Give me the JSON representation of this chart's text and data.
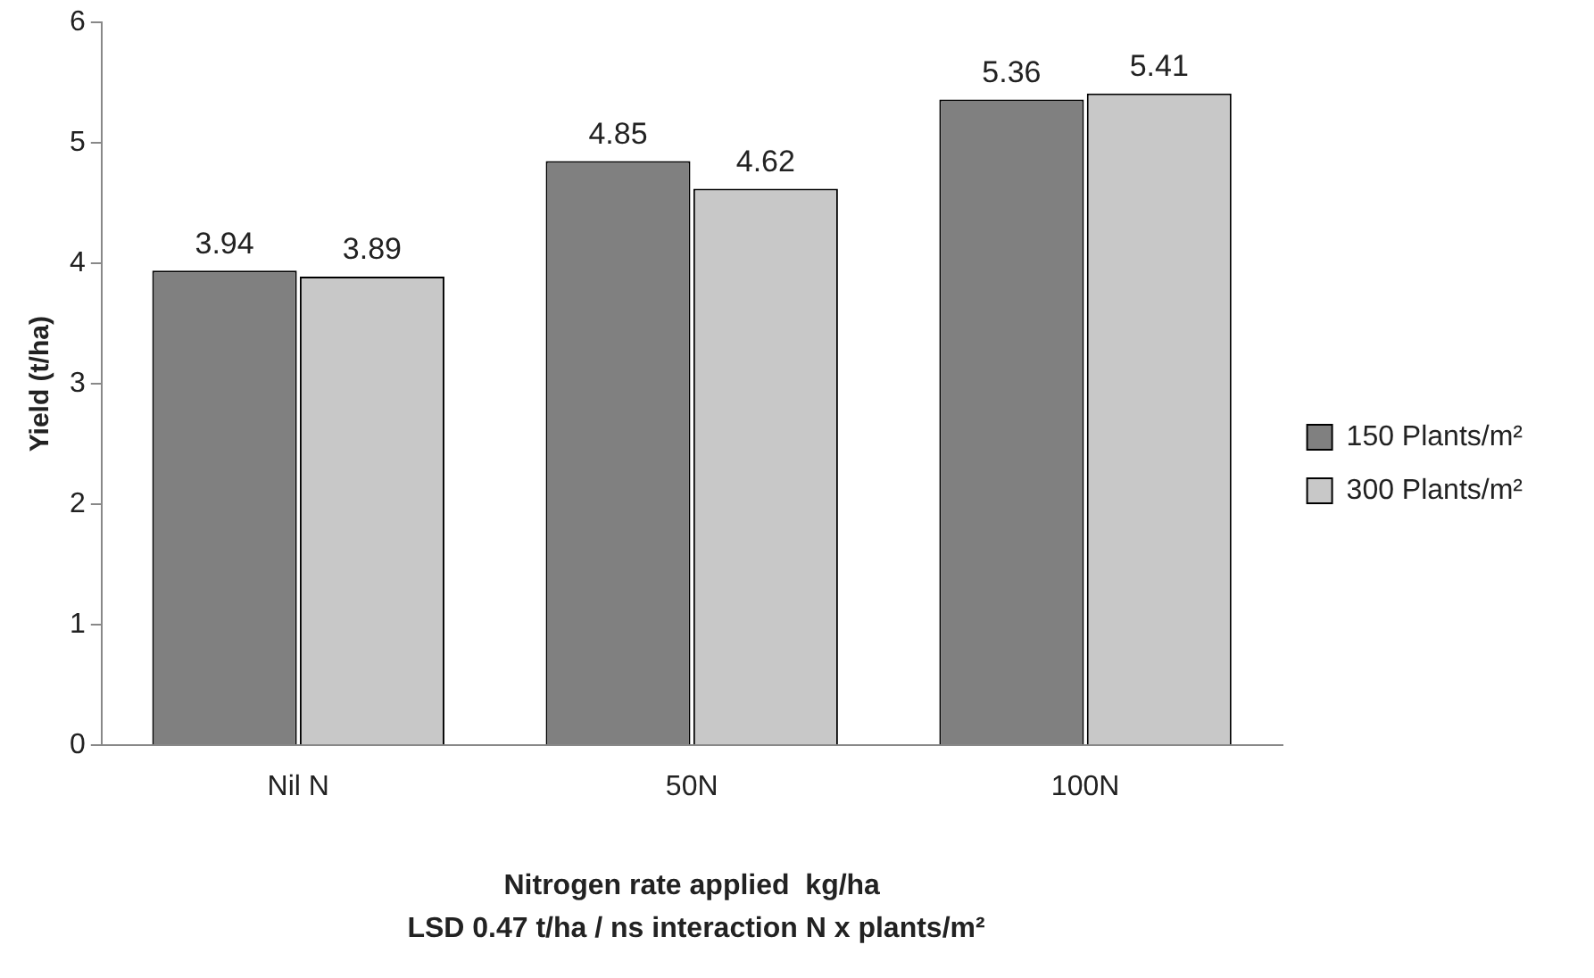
{
  "chart_data": {
    "type": "bar",
    "xlabel": "Nitrogen rate applied  kg/ha",
    "ylabel": "Yield (t/ha)",
    "annotations": [
      "LSD  0.47 t/ha / ns interaction N x plants/m²"
    ],
    "categories": [
      "Nil N",
      "50N",
      "100N"
    ],
    "series": [
      {
        "name": "150 Plants/m²",
        "color": "#808080",
        "values": [
          3.94,
          4.85,
          5.36
        ]
      },
      {
        "name": "300 Plants/m²",
        "color": "#c8c8c8",
        "values": [
          3.89,
          4.62,
          5.41
        ]
      }
    ],
    "ylim": [
      0,
      6
    ],
    "yticks": [
      0,
      1,
      2,
      3,
      4,
      5,
      6
    ],
    "grid": false,
    "legend": "right",
    "data_labels": true
  }
}
